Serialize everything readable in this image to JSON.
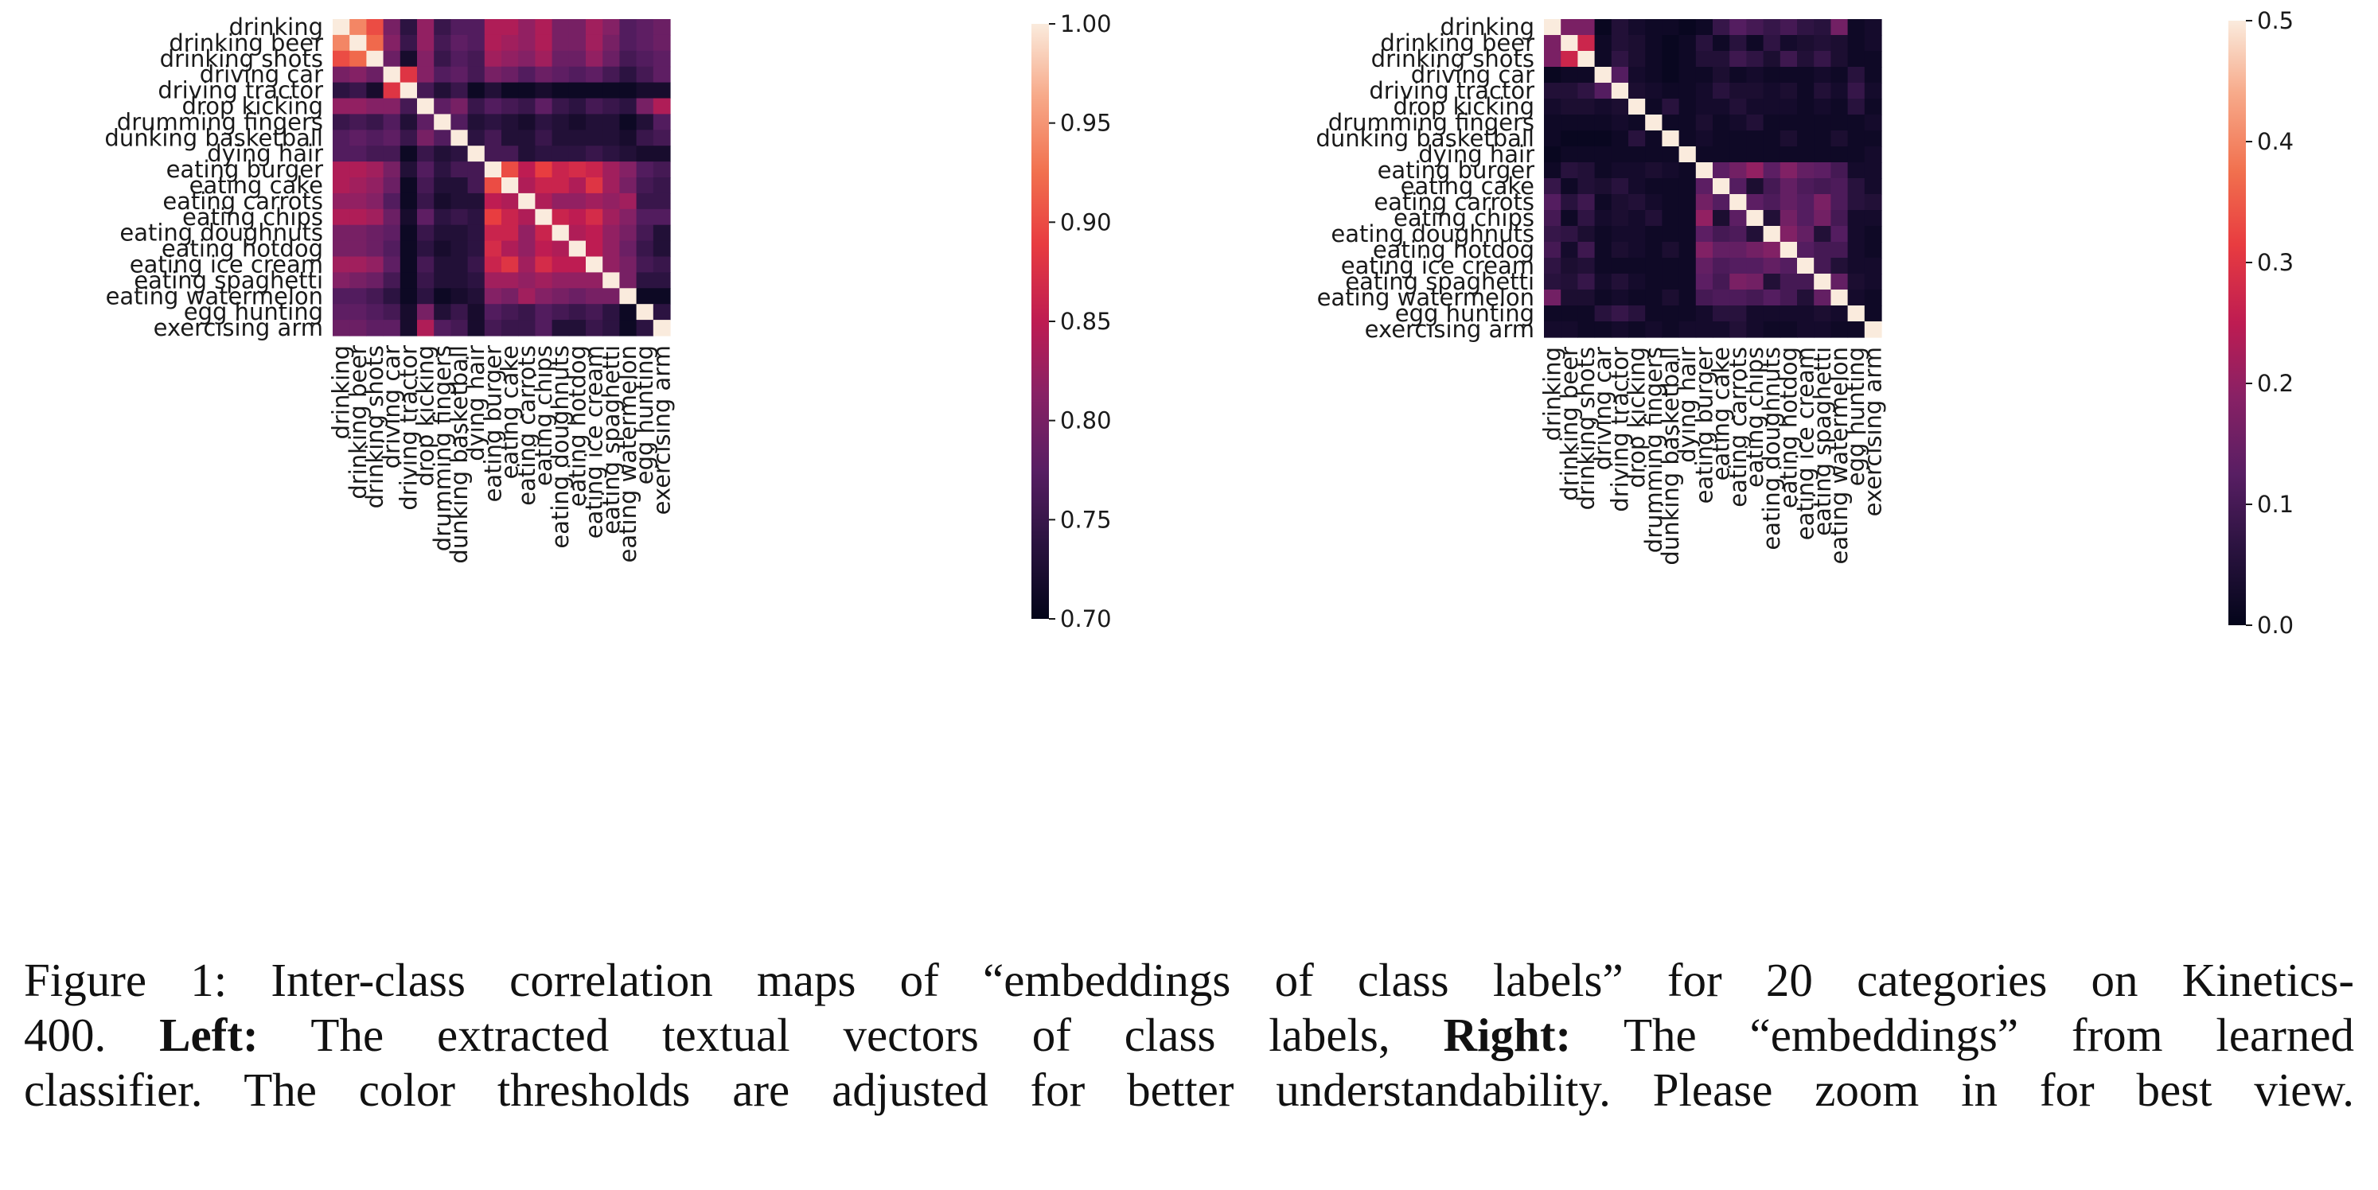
{
  "categories": [
    "drinking",
    "drinking beer",
    "drinking shots",
    "driving car",
    "driving tractor",
    "drop kicking",
    "drumming fingers",
    "dunking basketball",
    "dying hair",
    "eating burger",
    "eating cake",
    "eating carrots",
    "eating chips",
    "eating doughnuts",
    "eating hotdog",
    "eating ice cream",
    "eating spaghetti",
    "eating watermelon",
    "egg hunting",
    "exercising arm"
  ],
  "chart_data": [
    {
      "type": "heatmap",
      "title": "Left",
      "xlabel": "",
      "ylabel": "",
      "vmin": 0.7,
      "vmax": 1.0,
      "colorbar_ticks": [
        1.0,
        0.95,
        0.9,
        0.85,
        0.8,
        0.75,
        0.7
      ],
      "colorbar_tick_labels": [
        "1.00",
        "0.95",
        "0.90",
        "0.85",
        "0.80",
        "0.75",
        "0.70"
      ],
      "values": [
        [
          1.0,
          0.94,
          0.9,
          0.8,
          0.74,
          0.82,
          0.75,
          0.77,
          0.77,
          0.84,
          0.84,
          0.82,
          0.84,
          0.8,
          0.8,
          0.83,
          0.81,
          0.77,
          0.78,
          0.79
        ],
        [
          0.94,
          1.0,
          0.92,
          0.81,
          0.75,
          0.82,
          0.76,
          0.78,
          0.77,
          0.84,
          0.83,
          0.82,
          0.84,
          0.8,
          0.8,
          0.83,
          0.8,
          0.77,
          0.78,
          0.79
        ],
        [
          0.9,
          0.92,
          1.0,
          0.79,
          0.72,
          0.81,
          0.75,
          0.77,
          0.76,
          0.83,
          0.82,
          0.81,
          0.83,
          0.79,
          0.79,
          0.82,
          0.79,
          0.76,
          0.77,
          0.78
        ],
        [
          0.8,
          0.81,
          0.79,
          1.0,
          0.88,
          0.81,
          0.77,
          0.78,
          0.76,
          0.8,
          0.79,
          0.77,
          0.79,
          0.78,
          0.77,
          0.78,
          0.76,
          0.74,
          0.76,
          0.78
        ],
        [
          0.74,
          0.75,
          0.72,
          0.88,
          1.0,
          0.76,
          0.73,
          0.75,
          0.71,
          0.73,
          0.71,
          0.71,
          0.72,
          0.71,
          0.71,
          0.71,
          0.71,
          0.71,
          0.72,
          0.72
        ],
        [
          0.82,
          0.82,
          0.81,
          0.81,
          0.76,
          1.0,
          0.78,
          0.8,
          0.75,
          0.77,
          0.76,
          0.75,
          0.78,
          0.75,
          0.74,
          0.76,
          0.75,
          0.74,
          0.8,
          0.84
        ],
        [
          0.75,
          0.76,
          0.75,
          0.77,
          0.73,
          0.78,
          1.0,
          0.77,
          0.73,
          0.74,
          0.73,
          0.72,
          0.74,
          0.73,
          0.72,
          0.73,
          0.73,
          0.71,
          0.73,
          0.77
        ],
        [
          0.77,
          0.78,
          0.77,
          0.78,
          0.75,
          0.8,
          0.77,
          1.0,
          0.74,
          0.76,
          0.73,
          0.73,
          0.75,
          0.73,
          0.73,
          0.73,
          0.73,
          0.72,
          0.75,
          0.76
        ],
        [
          0.77,
          0.77,
          0.76,
          0.76,
          0.71,
          0.75,
          0.73,
          0.74,
          1.0,
          0.76,
          0.76,
          0.73,
          0.74,
          0.74,
          0.74,
          0.75,
          0.74,
          0.73,
          0.72,
          0.72
        ],
        [
          0.84,
          0.84,
          0.83,
          0.8,
          0.73,
          0.77,
          0.74,
          0.76,
          0.76,
          1.0,
          0.9,
          0.85,
          0.89,
          0.86,
          0.87,
          0.86,
          0.83,
          0.81,
          0.77,
          0.76
        ],
        [
          0.84,
          0.83,
          0.82,
          0.79,
          0.71,
          0.76,
          0.73,
          0.73,
          0.76,
          0.9,
          1.0,
          0.84,
          0.86,
          0.86,
          0.84,
          0.88,
          0.83,
          0.8,
          0.76,
          0.75
        ],
        [
          0.82,
          0.82,
          0.81,
          0.77,
          0.71,
          0.75,
          0.72,
          0.73,
          0.73,
          0.85,
          0.84,
          1.0,
          0.84,
          0.82,
          0.82,
          0.83,
          0.82,
          0.83,
          0.75,
          0.75
        ],
        [
          0.84,
          0.84,
          0.83,
          0.79,
          0.72,
          0.78,
          0.74,
          0.75,
          0.74,
          0.89,
          0.86,
          0.84,
          1.0,
          0.86,
          0.85,
          0.87,
          0.83,
          0.81,
          0.77,
          0.77
        ],
        [
          0.8,
          0.8,
          0.79,
          0.78,
          0.71,
          0.75,
          0.73,
          0.73,
          0.74,
          0.86,
          0.86,
          0.82,
          0.86,
          1.0,
          0.84,
          0.85,
          0.82,
          0.8,
          0.76,
          0.73
        ],
        [
          0.8,
          0.8,
          0.79,
          0.77,
          0.71,
          0.74,
          0.72,
          0.73,
          0.74,
          0.87,
          0.84,
          0.82,
          0.85,
          0.84,
          1.0,
          0.85,
          0.82,
          0.79,
          0.75,
          0.73
        ],
        [
          0.83,
          0.83,
          0.82,
          0.78,
          0.71,
          0.76,
          0.73,
          0.73,
          0.75,
          0.86,
          0.88,
          0.83,
          0.87,
          0.85,
          0.85,
          1.0,
          0.82,
          0.8,
          0.76,
          0.75
        ],
        [
          0.81,
          0.8,
          0.79,
          0.76,
          0.71,
          0.75,
          0.73,
          0.73,
          0.74,
          0.83,
          0.83,
          0.82,
          0.83,
          0.82,
          0.82,
          0.82,
          1.0,
          0.8,
          0.74,
          0.74
        ],
        [
          0.77,
          0.77,
          0.76,
          0.74,
          0.71,
          0.74,
          0.71,
          0.72,
          0.73,
          0.81,
          0.8,
          0.83,
          0.81,
          0.8,
          0.79,
          0.8,
          0.8,
          1.0,
          0.71,
          0.71
        ],
        [
          0.78,
          0.78,
          0.77,
          0.76,
          0.72,
          0.8,
          0.73,
          0.75,
          0.72,
          0.77,
          0.76,
          0.75,
          0.77,
          0.76,
          0.75,
          0.76,
          0.74,
          0.71,
          1.0,
          0.74
        ],
        [
          0.79,
          0.79,
          0.78,
          0.78,
          0.72,
          0.84,
          0.77,
          0.76,
          0.72,
          0.76,
          0.75,
          0.75,
          0.77,
          0.73,
          0.73,
          0.75,
          0.74,
          0.71,
          0.74,
          1.0
        ]
      ]
    },
    {
      "type": "heatmap",
      "title": "Right",
      "xlabel": "",
      "ylabel": "",
      "vmin": 0.0,
      "vmax": 0.5,
      "colorbar_ticks": [
        0.5,
        0.4,
        0.3,
        0.2,
        0.1,
        0.0
      ],
      "colorbar_tick_labels": [
        "0.5",
        "0.4",
        "0.3",
        "0.2",
        "0.1",
        "0.0"
      ],
      "values": [
        [
          1.0,
          0.17,
          0.17,
          0.01,
          0.05,
          0.03,
          0.02,
          0.02,
          0.01,
          0.02,
          0.08,
          0.12,
          0.1,
          0.08,
          0.1,
          0.07,
          0.06,
          0.16,
          0.02,
          0.03
        ],
        [
          0.17,
          1.0,
          0.27,
          0.02,
          0.05,
          0.04,
          0.02,
          0.01,
          0.02,
          0.06,
          0.02,
          0.06,
          0.02,
          0.07,
          0.03,
          0.04,
          0.05,
          0.04,
          0.02,
          0.03
        ],
        [
          0.17,
          0.27,
          1.0,
          0.02,
          0.07,
          0.04,
          0.02,
          0.01,
          0.02,
          0.05,
          0.05,
          0.09,
          0.07,
          0.04,
          0.09,
          0.05,
          0.08,
          0.04,
          0.02,
          0.02
        ],
        [
          0.01,
          0.02,
          0.02,
          1.0,
          0.12,
          0.03,
          0.02,
          0.01,
          0.02,
          0.02,
          0.04,
          0.02,
          0.03,
          0.02,
          0.02,
          0.02,
          0.03,
          0.02,
          0.06,
          0.02
        ],
        [
          0.05,
          0.05,
          0.07,
          0.12,
          1.0,
          0.04,
          0.03,
          0.02,
          0.02,
          0.03,
          0.06,
          0.04,
          0.04,
          0.03,
          0.04,
          0.02,
          0.05,
          0.03,
          0.08,
          0.03
        ],
        [
          0.03,
          0.04,
          0.04,
          0.03,
          0.04,
          1.0,
          0.02,
          0.06,
          0.02,
          0.03,
          0.03,
          0.05,
          0.03,
          0.03,
          0.03,
          0.02,
          0.03,
          0.02,
          0.06,
          0.02
        ],
        [
          0.02,
          0.02,
          0.02,
          0.02,
          0.03,
          0.02,
          1.0,
          0.02,
          0.02,
          0.04,
          0.02,
          0.03,
          0.05,
          0.02,
          0.02,
          0.02,
          0.02,
          0.02,
          0.02,
          0.03
        ],
        [
          0.02,
          0.01,
          0.01,
          0.01,
          0.02,
          0.06,
          0.02,
          1.0,
          0.02,
          0.03,
          0.02,
          0.02,
          0.02,
          0.02,
          0.04,
          0.02,
          0.02,
          0.04,
          0.02,
          0.02
        ],
        [
          0.01,
          0.02,
          0.02,
          0.02,
          0.02,
          0.02,
          0.02,
          0.02,
          1.0,
          0.02,
          0.02,
          0.02,
          0.02,
          0.02,
          0.02,
          0.02,
          0.02,
          0.02,
          0.02,
          0.03
        ],
        [
          0.02,
          0.06,
          0.05,
          0.02,
          0.03,
          0.03,
          0.04,
          0.03,
          0.02,
          1.0,
          0.13,
          0.16,
          0.2,
          0.13,
          0.18,
          0.14,
          0.13,
          0.1,
          0.03,
          0.03
        ],
        [
          0.08,
          0.02,
          0.05,
          0.04,
          0.06,
          0.03,
          0.02,
          0.02,
          0.02,
          0.13,
          1.0,
          0.12,
          0.04,
          0.1,
          0.14,
          0.11,
          0.1,
          0.11,
          0.06,
          0.03
        ],
        [
          0.12,
          0.06,
          0.09,
          0.02,
          0.04,
          0.05,
          0.03,
          0.02,
          0.02,
          0.16,
          0.12,
          1.0,
          0.13,
          0.11,
          0.14,
          0.12,
          0.17,
          0.11,
          0.06,
          0.05
        ],
        [
          0.1,
          0.02,
          0.07,
          0.03,
          0.04,
          0.03,
          0.05,
          0.02,
          0.02,
          0.2,
          0.04,
          0.13,
          1.0,
          0.05,
          0.16,
          0.12,
          0.16,
          0.1,
          0.03,
          0.03
        ],
        [
          0.08,
          0.07,
          0.04,
          0.02,
          0.03,
          0.03,
          0.02,
          0.02,
          0.02,
          0.13,
          0.1,
          0.11,
          0.05,
          1.0,
          0.18,
          0.14,
          0.05,
          0.12,
          0.03,
          0.02
        ],
        [
          0.1,
          0.03,
          0.09,
          0.02,
          0.04,
          0.03,
          0.02,
          0.04,
          0.02,
          0.18,
          0.14,
          0.14,
          0.16,
          0.18,
          1.0,
          0.12,
          0.1,
          0.1,
          0.03,
          0.02
        ],
        [
          0.07,
          0.04,
          0.05,
          0.02,
          0.02,
          0.02,
          0.02,
          0.02,
          0.02,
          0.14,
          0.11,
          0.12,
          0.12,
          0.14,
          0.12,
          1.0,
          0.1,
          0.05,
          0.03,
          0.03
        ],
        [
          0.06,
          0.05,
          0.08,
          0.03,
          0.05,
          0.03,
          0.02,
          0.02,
          0.02,
          0.13,
          0.1,
          0.17,
          0.16,
          0.05,
          0.1,
          0.1,
          1.0,
          0.14,
          0.04,
          0.03
        ],
        [
          0.16,
          0.04,
          0.04,
          0.02,
          0.03,
          0.02,
          0.02,
          0.04,
          0.02,
          0.1,
          0.11,
          0.11,
          0.1,
          0.12,
          0.1,
          0.05,
          0.14,
          1.0,
          0.03,
          0.02
        ],
        [
          0.02,
          0.02,
          0.02,
          0.06,
          0.08,
          0.06,
          0.02,
          0.02,
          0.02,
          0.03,
          0.06,
          0.06,
          0.03,
          0.03,
          0.03,
          0.03,
          0.04,
          0.03,
          1.0,
          0.02
        ],
        [
          0.03,
          0.03,
          0.02,
          0.02,
          0.03,
          0.02,
          0.03,
          0.02,
          0.03,
          0.03,
          0.03,
          0.05,
          0.03,
          0.02,
          0.02,
          0.03,
          0.03,
          0.02,
          0.02,
          1.0
        ]
      ]
    }
  ],
  "caption": {
    "figure_label": "Figure 1:",
    "line1_rest": "Inter-class correlation maps of “embeddings of class labels” for 20 categories on Kinetics-",
    "line2_start": "400.",
    "left_label": "Left:",
    "left_text": "The extracted textual vectors of class labels,",
    "right_label": "Right:",
    "right_text": "The “embeddings” from learned",
    "line3": "classifier. The color thresholds are adjusted for better understandability. Please zoom in for best view."
  }
}
